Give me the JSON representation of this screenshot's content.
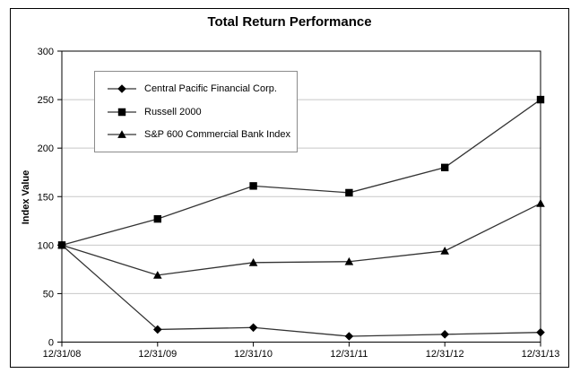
{
  "chart_data": {
    "type": "line",
    "title": "Total Return Performance",
    "ylabel": "Index Value",
    "xlabel": "",
    "categories": [
      "12/31/08",
      "12/31/09",
      "12/31/10",
      "12/31/11",
      "12/31/12",
      "12/31/13"
    ],
    "series": [
      {
        "name": "Central Pacific Financial Corp.",
        "marker": "diamond",
        "values": [
          100,
          13,
          15,
          6,
          8,
          10
        ]
      },
      {
        "name": "Russell 2000",
        "marker": "square",
        "values": [
          100,
          127,
          161,
          154,
          180,
          250
        ]
      },
      {
        "name": "S&P 600 Commercial Bank Index",
        "marker": "triangle",
        "values": [
          100,
          69,
          82,
          83,
          94,
          143
        ]
      }
    ],
    "ylim": [
      0,
      300
    ],
    "yticks": [
      0,
      50,
      100,
      150,
      200,
      250,
      300
    ],
    "grid": true,
    "legend_position": "upper-left-inside",
    "colors": {
      "line": "#333333",
      "marker": "#000000",
      "gridline": "#c8c8c8",
      "axis": "#000000",
      "background": "#ffffff",
      "legend_border": "#8c8c8c"
    }
  }
}
